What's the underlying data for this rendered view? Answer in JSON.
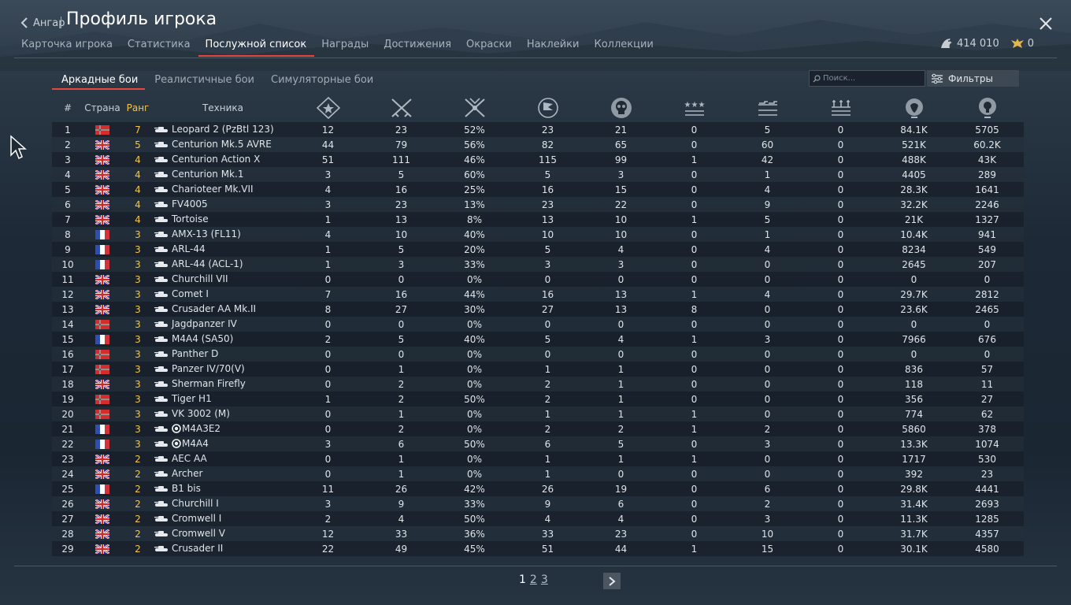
{
  "header": {
    "back_label": "Ангар",
    "title": "Профиль игрока",
    "tabs": [
      {
        "label": "Карточка игрока",
        "active": false
      },
      {
        "label": "Статистика",
        "active": false
      },
      {
        "label": "Послужной список",
        "active": true
      },
      {
        "label": "Награды",
        "active": false
      },
      {
        "label": "Достижения",
        "active": false
      },
      {
        "label": "Окраски",
        "active": false
      },
      {
        "label": "Наклейки",
        "active": false
      },
      {
        "label": "Коллекции",
        "active": false
      }
    ],
    "currency": {
      "silver": "414 010",
      "gold": "0"
    }
  },
  "mode_tabs": [
    {
      "label": "Аркадные бои",
      "active": true
    },
    {
      "label": "Реалистичные бои",
      "active": false
    },
    {
      "label": "Симуляторные бои",
      "active": false
    }
  ],
  "search": {
    "placeholder": "Поиск..."
  },
  "filters_label": "Фильтры",
  "table": {
    "headers": {
      "num": "#",
      "country": "Страна",
      "rank": "Ранг",
      "vehicle": "Техника"
    },
    "stat_icons": [
      "battles-icon",
      "victories-icon",
      "win-rate-icon",
      "respawns-icon",
      "deaths-icon",
      "air-kills-icon",
      "ground-kills-icon",
      "naval-kills-icon",
      "lions-icon",
      "research-icon"
    ],
    "rows": [
      {
        "num": "1",
        "country": "germany",
        "rank": "7",
        "vehicle": "Leopard 2 (PzBtl 123)",
        "premium": false,
        "stats": [
          "12",
          "23",
          "52%",
          "23",
          "21",
          "0",
          "5",
          "0",
          "84.1K",
          "5705"
        ]
      },
      {
        "num": "2",
        "country": "uk",
        "rank": "5",
        "vehicle": "Centurion Mk.5 AVRE",
        "premium": false,
        "stats": [
          "44",
          "79",
          "56%",
          "82",
          "65",
          "0",
          "60",
          "0",
          "521K",
          "60.2K"
        ]
      },
      {
        "num": "3",
        "country": "uk",
        "rank": "4",
        "vehicle": "Centurion Action X",
        "premium": false,
        "stats": [
          "51",
          "111",
          "46%",
          "115",
          "99",
          "1",
          "42",
          "0",
          "488K",
          "43K"
        ]
      },
      {
        "num": "4",
        "country": "uk",
        "rank": "4",
        "vehicle": "Centurion Mk.1",
        "premium": false,
        "stats": [
          "3",
          "5",
          "60%",
          "5",
          "3",
          "0",
          "1",
          "0",
          "4405",
          "289"
        ]
      },
      {
        "num": "5",
        "country": "uk",
        "rank": "4",
        "vehicle": "Charioteer Mk.VII",
        "premium": false,
        "stats": [
          "4",
          "16",
          "25%",
          "16",
          "15",
          "0",
          "4",
          "0",
          "28.3K",
          "1641"
        ]
      },
      {
        "num": "6",
        "country": "uk",
        "rank": "4",
        "vehicle": "FV4005",
        "premium": false,
        "stats": [
          "3",
          "23",
          "13%",
          "23",
          "22",
          "0",
          "9",
          "0",
          "32.2K",
          "2246"
        ]
      },
      {
        "num": "7",
        "country": "uk",
        "rank": "4",
        "vehicle": "Tortoise",
        "premium": false,
        "stats": [
          "1",
          "13",
          "8%",
          "13",
          "10",
          "1",
          "5",
          "0",
          "21K",
          "1327"
        ]
      },
      {
        "num": "8",
        "country": "france",
        "rank": "3",
        "vehicle": "AMX-13 (FL11)",
        "premium": false,
        "stats": [
          "4",
          "10",
          "40%",
          "10",
          "10",
          "0",
          "1",
          "0",
          "10.4K",
          "941"
        ]
      },
      {
        "num": "9",
        "country": "france",
        "rank": "3",
        "vehicle": "ARL-44",
        "premium": false,
        "stats": [
          "1",
          "5",
          "20%",
          "5",
          "4",
          "0",
          "4",
          "0",
          "8234",
          "549"
        ]
      },
      {
        "num": "10",
        "country": "france",
        "rank": "3",
        "vehicle": "ARL-44 (ACL-1)",
        "premium": false,
        "stats": [
          "1",
          "3",
          "33%",
          "3",
          "3",
          "0",
          "0",
          "0",
          "2645",
          "207"
        ]
      },
      {
        "num": "11",
        "country": "uk",
        "rank": "3",
        "vehicle": "Churchill VII",
        "premium": false,
        "stats": [
          "0",
          "0",
          "0%",
          "0",
          "0",
          "0",
          "0",
          "0",
          "0",
          "0"
        ]
      },
      {
        "num": "12",
        "country": "uk",
        "rank": "3",
        "vehicle": "Comet I",
        "premium": false,
        "stats": [
          "7",
          "16",
          "44%",
          "16",
          "13",
          "1",
          "4",
          "0",
          "29.7K",
          "2812"
        ]
      },
      {
        "num": "13",
        "country": "uk",
        "rank": "3",
        "vehicle": "Crusader AA Mk.II",
        "premium": false,
        "stats": [
          "8",
          "27",
          "30%",
          "27",
          "13",
          "8",
          "0",
          "0",
          "23.6K",
          "2465"
        ]
      },
      {
        "num": "14",
        "country": "germany",
        "rank": "3",
        "vehicle": "Jagdpanzer IV",
        "premium": false,
        "stats": [
          "0",
          "0",
          "0%",
          "0",
          "0",
          "0",
          "0",
          "0",
          "0",
          "0"
        ]
      },
      {
        "num": "15",
        "country": "france",
        "rank": "3",
        "vehicle": "M4A4 (SA50)",
        "premium": false,
        "stats": [
          "2",
          "5",
          "40%",
          "5",
          "4",
          "1",
          "3",
          "0",
          "7966",
          "676"
        ]
      },
      {
        "num": "16",
        "country": "germany",
        "rank": "3",
        "vehicle": "Panther D",
        "premium": false,
        "stats": [
          "0",
          "0",
          "0%",
          "0",
          "0",
          "0",
          "0",
          "0",
          "0",
          "0"
        ]
      },
      {
        "num": "17",
        "country": "germany",
        "rank": "3",
        "vehicle": "Panzer IV/70(V)",
        "premium": false,
        "stats": [
          "0",
          "1",
          "0%",
          "1",
          "1",
          "0",
          "0",
          "0",
          "836",
          "57"
        ]
      },
      {
        "num": "18",
        "country": "uk",
        "rank": "3",
        "vehicle": "Sherman Firefly",
        "premium": false,
        "stats": [
          "0",
          "2",
          "0%",
          "2",
          "1",
          "0",
          "0",
          "0",
          "118",
          "11"
        ]
      },
      {
        "num": "19",
        "country": "germany",
        "rank": "3",
        "vehicle": "Tiger H1",
        "premium": false,
        "stats": [
          "1",
          "2",
          "50%",
          "2",
          "1",
          "0",
          "0",
          "0",
          "356",
          "27"
        ]
      },
      {
        "num": "20",
        "country": "germany",
        "rank": "3",
        "vehicle": "VK 3002 (M)",
        "premium": false,
        "stats": [
          "0",
          "1",
          "0%",
          "1",
          "1",
          "1",
          "0",
          "0",
          "774",
          "62"
        ]
      },
      {
        "num": "21",
        "country": "france",
        "rank": "3",
        "vehicle": "M4A3E2",
        "premium": true,
        "stats": [
          "0",
          "2",
          "0%",
          "2",
          "2",
          "1",
          "2",
          "0",
          "5860",
          "378"
        ]
      },
      {
        "num": "22",
        "country": "france",
        "rank": "3",
        "vehicle": "M4A4",
        "premium": true,
        "stats": [
          "3",
          "6",
          "50%",
          "6",
          "5",
          "0",
          "3",
          "0",
          "13.3K",
          "1074"
        ]
      },
      {
        "num": "23",
        "country": "uk",
        "rank": "2",
        "vehicle": "AEC AA",
        "premium": false,
        "stats": [
          "0",
          "1",
          "0%",
          "1",
          "1",
          "1",
          "0",
          "0",
          "1717",
          "530"
        ]
      },
      {
        "num": "24",
        "country": "uk",
        "rank": "2",
        "vehicle": "Archer",
        "premium": false,
        "stats": [
          "0",
          "1",
          "0%",
          "1",
          "0",
          "0",
          "0",
          "0",
          "392",
          "23"
        ]
      },
      {
        "num": "25",
        "country": "france",
        "rank": "2",
        "vehicle": "B1 bis",
        "premium": false,
        "stats": [
          "11",
          "26",
          "42%",
          "26",
          "19",
          "0",
          "6",
          "0",
          "29.8K",
          "4441"
        ]
      },
      {
        "num": "26",
        "country": "uk",
        "rank": "2",
        "vehicle": "Churchill I",
        "premium": false,
        "stats": [
          "3",
          "9",
          "33%",
          "9",
          "6",
          "0",
          "2",
          "0",
          "31.4K",
          "2693"
        ]
      },
      {
        "num": "27",
        "country": "uk",
        "rank": "2",
        "vehicle": "Cromwell I",
        "premium": false,
        "stats": [
          "2",
          "4",
          "50%",
          "4",
          "4",
          "0",
          "3",
          "0",
          "11.3K",
          "1285"
        ]
      },
      {
        "num": "28",
        "country": "uk",
        "rank": "2",
        "vehicle": "Cromwell V",
        "premium": false,
        "stats": [
          "12",
          "33",
          "36%",
          "33",
          "23",
          "0",
          "10",
          "0",
          "31.7K",
          "4357"
        ]
      },
      {
        "num": "29",
        "country": "uk",
        "rank": "2",
        "vehicle": "Crusader II",
        "premium": false,
        "stats": [
          "22",
          "49",
          "45%",
          "51",
          "44",
          "1",
          "15",
          "0",
          "30.1K",
          "4580"
        ]
      }
    ]
  },
  "pagination": {
    "current": "1",
    "pages": [
      "2",
      "3"
    ]
  },
  "colors": {
    "accent": "#e5483b",
    "rank": "#f2c64d"
  }
}
